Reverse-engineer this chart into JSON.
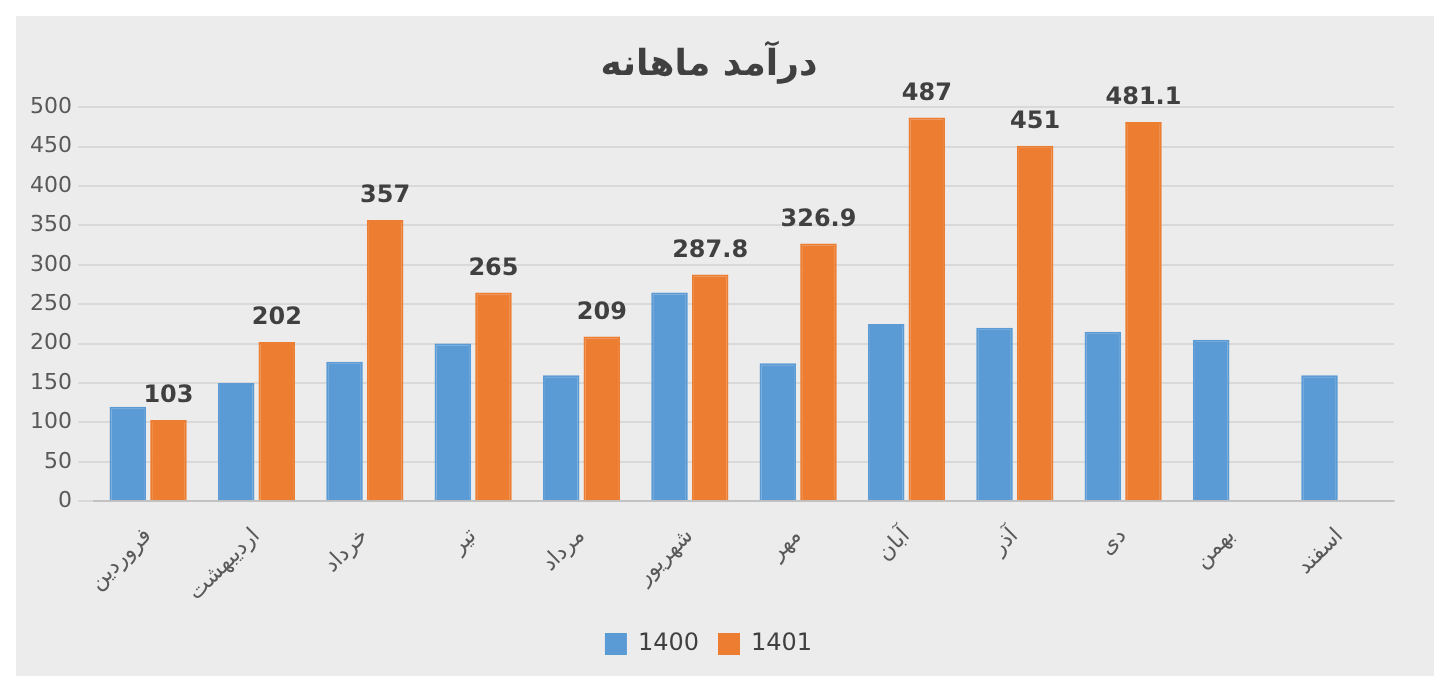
{
  "chart_data": {
    "type": "bar",
    "title": "درآمد ماهانه",
    "categories": [
      "فروردین",
      "اردیبهشت",
      "خرداد",
      "تیر",
      "مرداد",
      "شهریور",
      "مهر",
      "آبان",
      "آذر",
      "دی",
      "بهمن",
      "اسفند"
    ],
    "series": [
      {
        "name": "1400",
        "color": "#5b9bd5",
        "values": [
          120,
          150,
          177,
          200,
          160,
          265,
          175,
          225,
          220,
          215,
          205,
          160
        ]
      },
      {
        "name": "1401",
        "color": "#ed7d31",
        "values": [
          103,
          202,
          357,
          265,
          209,
          287.8,
          326.9,
          487,
          451,
          481.1,
          null,
          null
        ],
        "value_labels": [
          "103",
          "202",
          "357",
          "265",
          "209",
          "287.8",
          "326.9",
          "487",
          "451",
          "481.1",
          null,
          null
        ]
      }
    ],
    "ylim": [
      0,
      500
    ],
    "yticks": [
      0,
      50,
      100,
      150,
      200,
      250,
      300,
      350,
      400,
      450,
      500
    ],
    "grid": "y",
    "legend": "bottom"
  }
}
